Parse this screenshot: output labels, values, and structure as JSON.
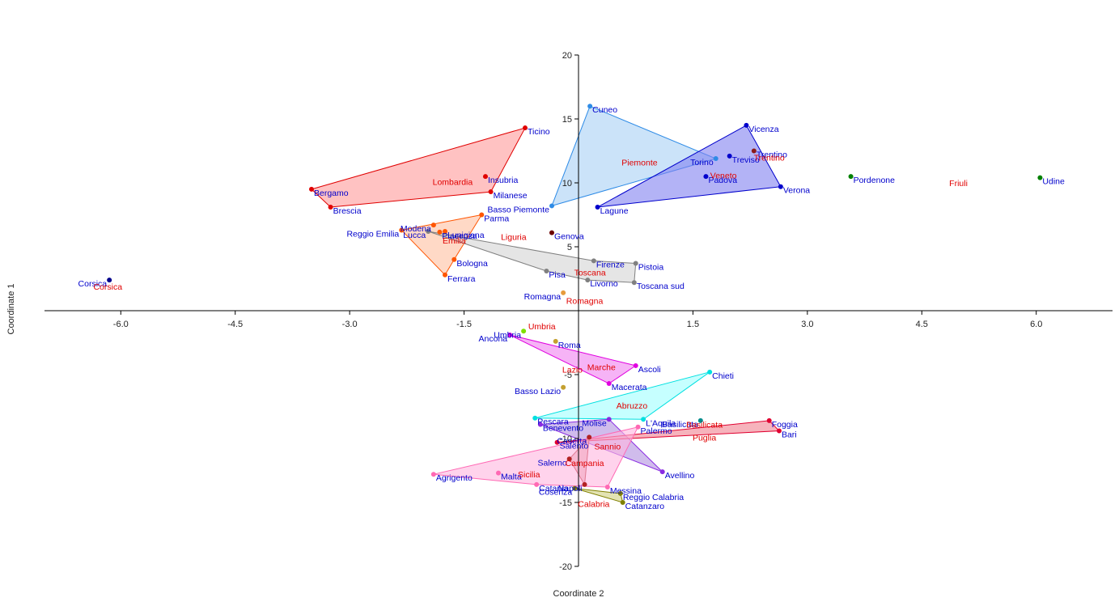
{
  "chart_data": {
    "type": "scatter",
    "xlabel": "Coordinate 2",
    "ylabel": "Coordinate 1",
    "xlim": [
      -7,
      7
    ],
    "ylim": [
      -20,
      20
    ],
    "x_ticks": [
      "-6.0",
      "-4.5",
      "-3.0",
      "-1.5",
      "1.5",
      "3.0",
      "4.5",
      "6.0"
    ],
    "y_ticks": [
      "20",
      "15",
      "10",
      "5",
      "-5",
      "-10",
      "-15",
      "-20"
    ],
    "point_label_color": "#0000CC",
    "group_label_color": "#E00000",
    "groups": [
      {
        "name": "Lombardia",
        "color": "#E00000",
        "fill": "#FF9999",
        "label": [
          -1.65,
          10.1
        ],
        "hull": [
          "Ticino",
          "Bergamo",
          "Brescia",
          "Milanese"
        ],
        "points": [
          {
            "name": "Ticino",
            "x": -0.7,
            "y": 14.3
          },
          {
            "name": "Insubria",
            "x": -1.22,
            "y": 10.5
          },
          {
            "name": "Bergamo",
            "x": -3.5,
            "y": 9.5
          },
          {
            "name": "Milanese",
            "x": -1.15,
            "y": 9.3
          },
          {
            "name": "Brescia",
            "x": -3.25,
            "y": 8.1
          }
        ]
      },
      {
        "name": "Piemonte",
        "color": "#2E8BE6",
        "fill": "#A8D0F5",
        "label": [
          0.8,
          11.6
        ],
        "hull": [
          "Cuneo",
          "Torino",
          "Basso Piemonte"
        ],
        "points": [
          {
            "name": "Cuneo",
            "x": 0.15,
            "y": 16.0
          },
          {
            "name": "Torino",
            "x": 1.8,
            "y": 11.9
          },
          {
            "name": "Basso Piemonte",
            "x": -0.35,
            "y": 8.2
          }
        ]
      },
      {
        "name": "Veneto",
        "color": "#0000CC",
        "fill": "#8080F0",
        "label": [
          1.9,
          10.6
        ],
        "hull": [
          "Vicenza",
          "Verona",
          "Lagune"
        ],
        "points": [
          {
            "name": "Vicenza",
            "x": 2.2,
            "y": 14.5
          },
          {
            "name": "Treviso",
            "x": 1.98,
            "y": 12.1
          },
          {
            "name": "Padova",
            "x": 1.67,
            "y": 10.5
          },
          {
            "name": "Verona",
            "x": 2.65,
            "y": 9.7
          },
          {
            "name": "Lagune",
            "x": 0.25,
            "y": 8.1
          }
        ]
      },
      {
        "name": "Trentino",
        "color": "#8B1A1A",
        "fill": "none",
        "label": [
          2.5,
          12.0
        ],
        "points": [
          {
            "name": "Trentino",
            "x": 2.3,
            "y": 12.5
          }
        ]
      },
      {
        "name": "Friuli",
        "color": "#008000",
        "fill": "none",
        "label": [
          4.98,
          10.0
        ],
        "points": [
          {
            "name": "Pordenone",
            "x": 3.57,
            "y": 10.5
          },
          {
            "name": "Udine",
            "x": 6.05,
            "y": 10.4
          }
        ]
      },
      {
        "name": "Emilia",
        "color": "#FF5500",
        "fill": "#FFBFA0",
        "label": [
          -1.63,
          5.5
        ],
        "hull": [
          "Parma",
          "Reggio Emilia",
          "Ferrara",
          "Bologna"
        ],
        "points": [
          {
            "name": "Parma",
            "x": -1.27,
            "y": 7.5
          },
          {
            "name": "Modena",
            "x": -1.9,
            "y": 6.7
          },
          {
            "name": "Lunigiana",
            "x": -1.75,
            "y": 6.2
          },
          {
            "name": "Piacenza",
            "x": -1.82,
            "y": 6.15
          },
          {
            "name": "Reggio Emilia",
            "x": -2.32,
            "y": 6.3
          },
          {
            "name": "Bologna",
            "x": -1.63,
            "y": 4.0
          },
          {
            "name": "Ferrara",
            "x": -1.75,
            "y": 2.8
          }
        ]
      },
      {
        "name": "Liguria",
        "color": "#6B0000",
        "fill": "none",
        "label": [
          -0.85,
          5.8
        ],
        "points": [
          {
            "name": "Genova",
            "x": -0.35,
            "y": 6.1
          }
        ]
      },
      {
        "name": "Toscana",
        "color": "#808080",
        "fill": "#D3D3D3",
        "label": [
          0.15,
          3.0
        ],
        "hull": [
          "Lucca",
          "Firenze",
          "Pistoia",
          "Toscana sud",
          "Livorno",
          "Pisa"
        ],
        "points": [
          {
            "name": "Lucca",
            "x": -1.97,
            "y": 6.2
          },
          {
            "name": "Firenze",
            "x": 0.2,
            "y": 3.9
          },
          {
            "name": "Pistoia",
            "x": 0.75,
            "y": 3.7
          },
          {
            "name": "Pisa",
            "x": -0.42,
            "y": 3.1
          },
          {
            "name": "Livorno",
            "x": 0.12,
            "y": 2.4
          },
          {
            "name": "Toscana sud",
            "x": 0.73,
            "y": 2.2
          }
        ]
      },
      {
        "name": "Corsica",
        "color": "#00008B",
        "fill": "none",
        "label": [
          -6.17,
          1.9
        ],
        "points": [
          {
            "name": "Corsica",
            "x": -6.15,
            "y": 2.4
          }
        ]
      },
      {
        "name": "Romagna",
        "color": "#E69B3C",
        "fill": "none",
        "label": [
          0.08,
          0.8
        ],
        "points": [
          {
            "name": "Romagna",
            "x": -0.2,
            "y": 1.4
          }
        ]
      },
      {
        "name": "Umbria",
        "color": "#7FE000",
        "fill": "none",
        "label": [
          -0.48,
          -1.2
        ],
        "points": [
          {
            "name": "Umbria",
            "x": -0.72,
            "y": -1.6
          }
        ]
      },
      {
        "name": "Lazio",
        "color": "#C4A030",
        "fill": "none",
        "label": [
          -0.08,
          -4.6
        ],
        "points": [
          {
            "name": "Roma",
            "x": -0.3,
            "y": -2.4
          },
          {
            "name": "Basso Lazio",
            "x": -0.2,
            "y": -6.0
          }
        ]
      },
      {
        "name": "Marche",
        "color": "#E000E0",
        "fill": "#F080F0",
        "label": [
          0.3,
          -4.4
        ],
        "hull": [
          "Ancona",
          "Ascoli",
          "Macerata"
        ],
        "points": [
          {
            "name": "Ancona",
            "x": -0.9,
            "y": -1.9
          },
          {
            "name": "Ascoli",
            "x": 0.75,
            "y": -4.3
          },
          {
            "name": "Macerata",
            "x": 0.4,
            "y": -5.7
          }
        ]
      },
      {
        "name": "Abruzzo",
        "color": "#00E0E0",
        "fill": "#A0FFFF",
        "label": [
          0.7,
          -7.4
        ],
        "hull": [
          "Chieti",
          "L'Aquila",
          "Pescara"
        ],
        "points": [
          {
            "name": "Chieti",
            "x": 1.72,
            "y": -4.8
          },
          {
            "name": "L'Aquila",
            "x": 0.85,
            "y": -8.5
          },
          {
            "name": "Pescara",
            "x": -0.57,
            "y": -8.4
          }
        ]
      },
      {
        "name": "Sannio",
        "color": "#8A2BE2",
        "fill": "#B090E0",
        "label": [
          0.38,
          -10.6
        ],
        "hull": [
          "Molise",
          "Avellino",
          "Benevento"
        ],
        "points": [
          {
            "name": "Molise",
            "x": 0.4,
            "y": -8.5
          },
          {
            "name": "Benevento",
            "x": -0.5,
            "y": -8.9
          },
          {
            "name": "Avellino",
            "x": 1.1,
            "y": -12.6
          }
        ]
      },
      {
        "name": "Basilicata",
        "color": "#008B8B",
        "fill": "none",
        "label": [
          1.65,
          -8.9
        ],
        "points": [
          {
            "name": "Basilicata",
            "x": 1.6,
            "y": -8.6
          }
        ]
      },
      {
        "name": "Puglia",
        "color": "#E00030",
        "fill": "#F08090",
        "label": [
          1.65,
          -9.9
        ],
        "hull": [
          "Foggia",
          "Bari",
          "Salento"
        ],
        "points": [
          {
            "name": "Foggia",
            "x": 2.5,
            "y": -8.6
          },
          {
            "name": "Bari",
            "x": 2.63,
            "y": -9.4
          },
          {
            "name": "Salento",
            "x": -0.28,
            "y": -10.3
          }
        ]
      },
      {
        "name": "Campania",
        "color": "#B22222",
        "fill": "#E09090",
        "label": [
          0.08,
          -11.9
        ],
        "hull": [
          "Caserta",
          "Napoli",
          "Salerno"
        ],
        "points": [
          {
            "name": "Caserta",
            "x": 0.14,
            "y": -9.9
          },
          {
            "name": "Salerno",
            "x": -0.12,
            "y": -11.6
          },
          {
            "name": "Napoli",
            "x": 0.08,
            "y": -13.6
          }
        ]
      },
      {
        "name": "Sicilia",
        "color": "#FF69B4",
        "fill": "#FFB6E0",
        "label": [
          -0.65,
          -12.8
        ],
        "hull": [
          "Palermo",
          "Messina",
          "Catania",
          "Agrigento"
        ],
        "points": [
          {
            "name": "Palermo",
            "x": 0.78,
            "y": -9.1
          },
          {
            "name": "Agrigento",
            "x": -1.9,
            "y": -12.8
          },
          {
            "name": "Malta",
            "x": -1.05,
            "y": -12.7
          },
          {
            "name": "Catania",
            "x": -0.55,
            "y": -13.6
          },
          {
            "name": "Messina",
            "x": 0.38,
            "y": -13.8
          }
        ]
      },
      {
        "name": "Calabria",
        "color": "#808000",
        "fill": "#D0D080",
        "label": [
          0.2,
          -15.1
        ],
        "hull": [
          "Cosenza",
          "Catanzaro",
          "Reggio Calabria"
        ],
        "points": [
          {
            "name": "Cosenza",
            "x": -0.05,
            "y": -13.9
          },
          {
            "name": "Reggio Calabria",
            "x": 0.55,
            "y": -14.3
          },
          {
            "name": "Catanzaro",
            "x": 0.58,
            "y": -15.0
          }
        ]
      }
    ]
  }
}
